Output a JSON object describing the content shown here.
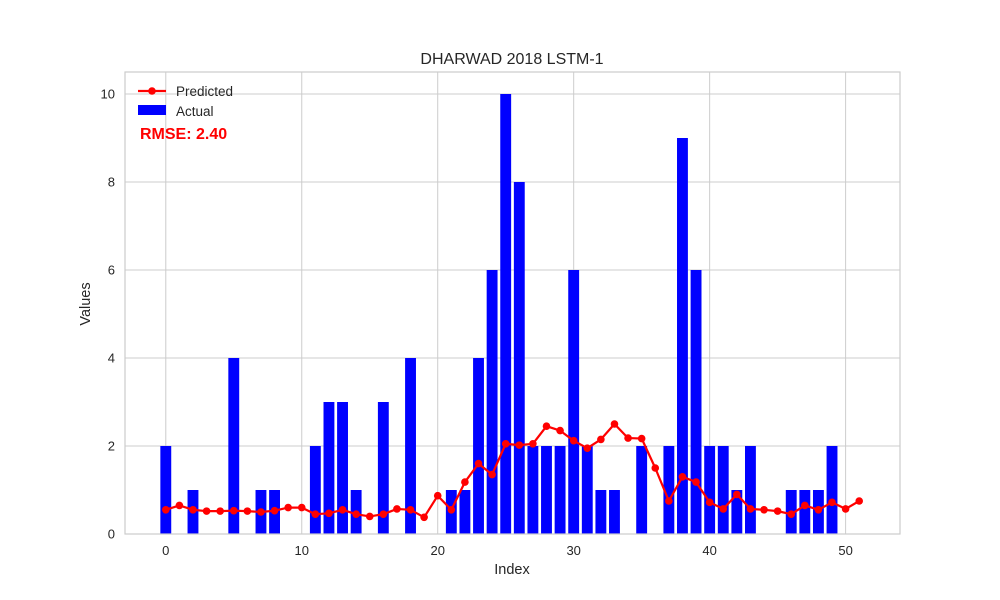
{
  "chart_data": {
    "type": "bar",
    "title": "DHARWAD 2018 LSTM-1",
    "xlabel": "Index",
    "ylabel": "Values",
    "xlim": [
      -3,
      54
    ],
    "ylim": [
      0,
      10.5
    ],
    "xticks": [
      0,
      10,
      20,
      30,
      40,
      50
    ],
    "yticks": [
      0,
      2,
      4,
      6,
      8,
      10
    ],
    "grid": true,
    "legend_position": "top-left",
    "annotation": "RMSE: 2.40",
    "annotation_color": "#ff0000",
    "series": [
      {
        "name": "Predicted",
        "type": "line",
        "color": "#ff0000",
        "marker": "circle",
        "values": [
          0.55,
          0.65,
          0.55,
          0.52,
          0.52,
          0.53,
          0.52,
          0.5,
          0.53,
          0.6,
          0.6,
          0.45,
          0.47,
          0.55,
          0.45,
          0.4,
          0.45,
          0.57,
          0.55,
          0.38,
          0.87,
          0.55,
          1.18,
          1.6,
          1.35,
          2.05,
          2.02,
          2.05,
          2.45,
          2.35,
          2.12,
          1.95,
          2.15,
          2.5,
          2.18,
          2.17,
          1.5,
          0.75,
          1.3,
          1.18,
          0.72,
          0.57,
          0.9,
          0.57,
          0.55,
          0.52,
          0.45,
          0.65,
          0.55,
          0.72,
          0.57,
          0.75
        ]
      },
      {
        "name": "Actual",
        "type": "bar",
        "color": "#0000ff",
        "values": [
          2,
          0,
          1,
          0,
          0,
          4,
          0,
          1,
          1,
          0,
          0,
          2,
          3,
          3,
          1,
          0,
          3,
          0,
          4,
          0,
          0,
          1,
          1,
          4,
          6,
          10,
          8,
          2,
          2,
          2,
          6,
          2,
          1,
          1,
          0,
          2,
          0,
          2,
          9,
          6,
          2,
          2,
          1,
          2,
          0,
          0,
          1,
          1,
          1,
          2,
          0,
          0
        ]
      }
    ]
  }
}
